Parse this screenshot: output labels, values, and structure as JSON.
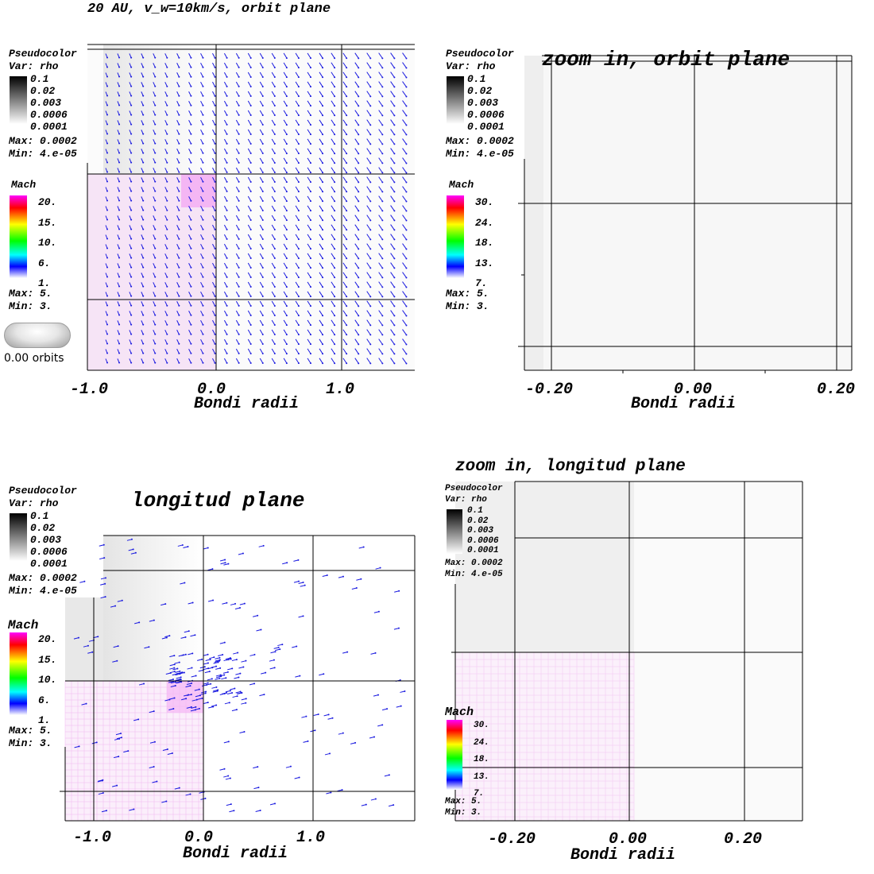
{
  "title": "20 AU, v_w=10km/s, orbit plane",
  "time_label": "0.00 orbits",
  "colors": {
    "arrow": "#1a1ae0",
    "mach_tint": "#f4c8f4",
    "grid": "#000000"
  },
  "panels": [
    {
      "id": "p1",
      "title": "",
      "xlabel": "Bondi radii",
      "xticks": [
        "-1.0",
        "0.0",
        "1.0"
      ],
      "legend": {
        "pseudo_head": "Pseudocolor",
        "pseudo_var": "Var: rho",
        "pseudo_ticks": [
          "0.1",
          "0.02",
          "0.003",
          "0.0006",
          "0.0001"
        ],
        "pseudo_max": "Max:  0.0002",
        "pseudo_min": "Min:  4.e-05",
        "mach_head": "Mach",
        "mach_ticks": [
          "20.",
          "15.",
          "10.",
          "6.",
          "1."
        ],
        "mach_max": "Max:  5.",
        "mach_min": "Min:  3."
      }
    },
    {
      "id": "p2",
      "title": "zoom in, orbit plane",
      "xlabel": "Bondi radii",
      "xticks": [
        "-0.20",
        "0.00",
        "0.20"
      ],
      "legend": {
        "pseudo_head": "Pseudocolor",
        "pseudo_var": "Var: rho",
        "pseudo_ticks": [
          "0.1",
          "0.02",
          "0.003",
          "0.0006",
          "0.0001"
        ],
        "pseudo_max": "Max:  0.0002",
        "pseudo_min": "Min:  4.e-05",
        "mach_head": "Mach",
        "mach_ticks": [
          "30.",
          "24.",
          "18.",
          "13.",
          "7."
        ],
        "mach_max": "Max:  5.",
        "mach_min": "Min:  3."
      }
    },
    {
      "id": "p3",
      "title": "longitud plane",
      "xlabel": "Bondi radii",
      "xticks": [
        "-1.0",
        "0.0",
        "1.0"
      ],
      "legend": {
        "pseudo_head": "Pseudocolor",
        "pseudo_var": "Var: rho",
        "pseudo_ticks": [
          "0.1",
          "0.02",
          "0.003",
          "0.0006",
          "0.0001"
        ],
        "pseudo_max": "Max:  0.0002",
        "pseudo_min": "Min:  4.e-05",
        "mach_head": "Mach",
        "mach_ticks": [
          "20.",
          "15.",
          "10.",
          "6.",
          "1."
        ],
        "mach_max": "Max:  5.",
        "mach_min": "Min:  3."
      }
    },
    {
      "id": "p4",
      "title": "zoom in, longitud plane",
      "xlabel": "Bondi radii",
      "xticks": [
        "-0.20",
        "0.00",
        "0.20"
      ],
      "legend": {
        "pseudo_head": "Pseudocolor",
        "pseudo_var": "Var: rho",
        "pseudo_ticks": [
          "0.1",
          "0.02",
          "0.003",
          "0.0006",
          "0.0001"
        ],
        "pseudo_max": "Max:  0.0002",
        "pseudo_min": "Min:  4.e-05",
        "mach_head": "Mach",
        "mach_ticks": [
          "30.",
          "24.",
          "18.",
          "13.",
          "7."
        ],
        "mach_max": "Max:  5.",
        "mach_min": "Min:  3."
      }
    }
  ]
}
